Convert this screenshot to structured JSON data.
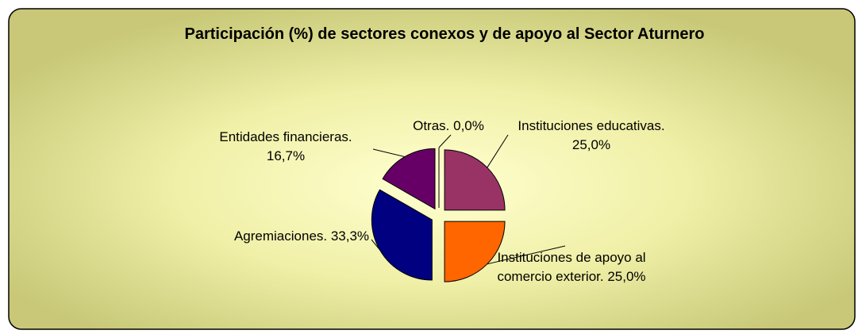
{
  "chart_data": {
    "type": "pie",
    "title": "Participación (%) de sectores conexos y de apoyo al Sector Aturnero",
    "values": [
      25,
      25,
      33.3,
      16.7,
      0
    ],
    "value_labels": [
      "Instituciones educativas. 25,0%",
      "Instituciones de apoyo al comercio exterior. 25,0%",
      "Agremiaciones. 33,3%",
      "Entidades financieras. 16,7%",
      "Otras. 0,0%"
    ],
    "colors": [
      "#993366",
      "#ff6600",
      "#000080",
      "#660066",
      "#ffffff"
    ]
  }
}
